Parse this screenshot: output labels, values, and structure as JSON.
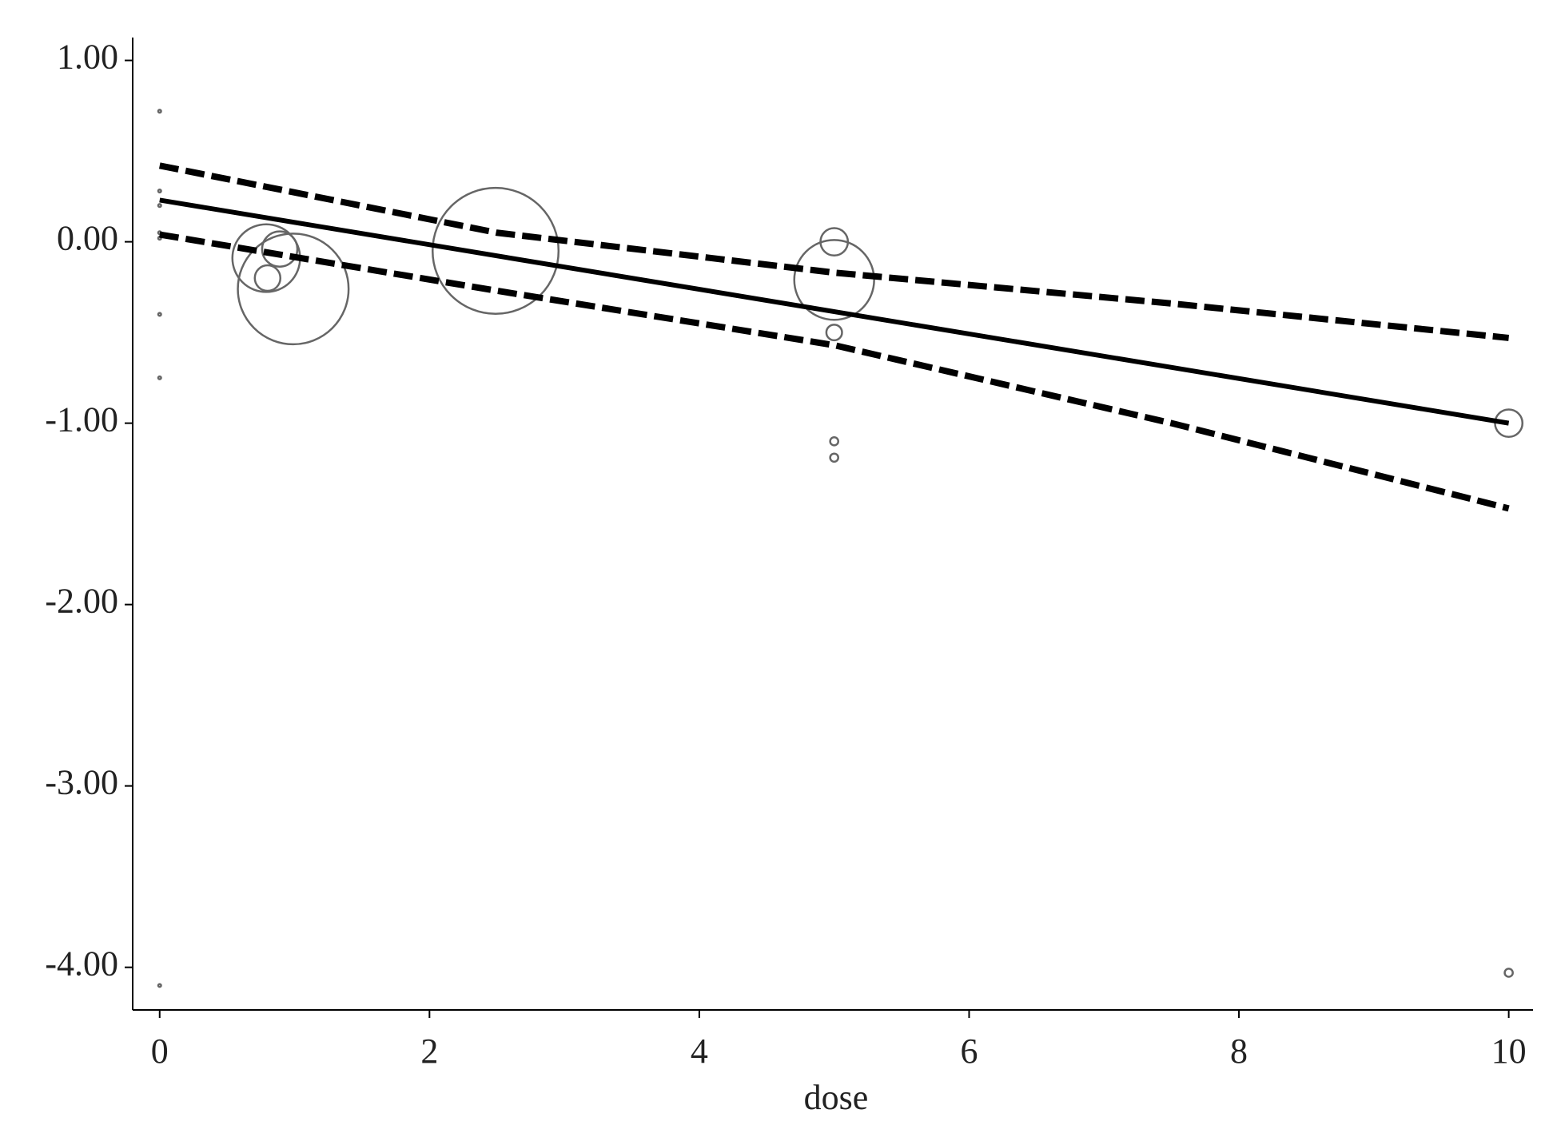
{
  "chart_data": {
    "type": "bubble",
    "x_label": "dose",
    "xlim": [
      -0.2,
      10.18
    ],
    "ylim": [
      -4.235,
      1.126
    ],
    "xticks": [
      0,
      2,
      4,
      6,
      8,
      10
    ],
    "yticks": [
      {
        "value": 1,
        "label": "1.00"
      },
      {
        "value": 0,
        "label": "0.00"
      },
      {
        "value": -1,
        "label": "-1.00"
      },
      {
        "value": -2,
        "label": "-2.00"
      },
      {
        "value": -3,
        "label": "-3.00"
      },
      {
        "value": -4,
        "label": "-4.00"
      }
    ],
    "bubble_color": "#666666",
    "bubbles": {
      "x": [
        0,
        0,
        0,
        0,
        0,
        0,
        0,
        0,
        0.79,
        0.89,
        0.8,
        0.99,
        2.49,
        5,
        5,
        5,
        5,
        5,
        10,
        10
      ],
      "values": [
        0.72,
        0.28,
        0.2,
        0.05,
        0.02,
        -0.4,
        -0.75,
        -4.1,
        -0.09,
        -0.04,
        -0.2,
        -0.26,
        -0.05,
        0,
        -0.21,
        -0.5,
        -1.1,
        -1.19,
        -1.0,
        -4.03
      ],
      "sizes": [
        0.05,
        0.05,
        0.05,
        0.05,
        0.05,
        0.05,
        0.05,
        0.05,
        28,
        7.6,
        4,
        75,
        97,
        4.6,
        39,
        1.5,
        0.4,
        0.4,
        4.6,
        0.4
      ]
    },
    "lines": [
      {
        "style": "solid",
        "color": "#000000",
        "x": [
          0,
          10
        ],
        "values": [
          0.23,
          -1.0
        ]
      },
      {
        "style": "dashed",
        "color": "#000000",
        "x": [
          0,
          2.5,
          5,
          7.5,
          10
        ],
        "values": [
          0.42,
          0.05,
          -0.17,
          -0.34,
          -0.53
        ]
      },
      {
        "style": "dashed",
        "color": "#000000",
        "x": [
          0,
          2.5,
          5,
          7.5,
          10
        ],
        "values": [
          0.04,
          -0.27,
          -0.57,
          -1.0,
          -1.47
        ]
      }
    ]
  }
}
